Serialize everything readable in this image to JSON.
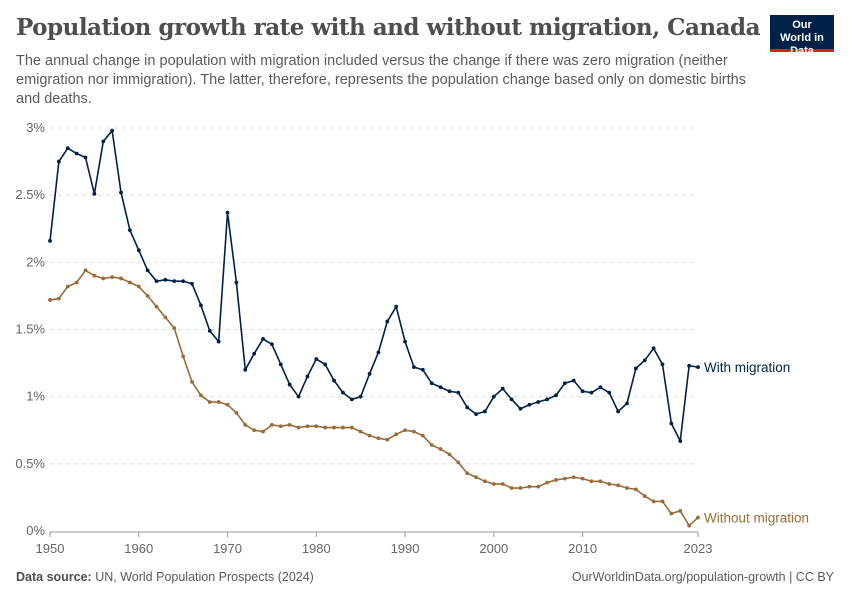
{
  "header": {
    "title": "Population growth rate with and without migration, Canada",
    "subtitle": "The annual change in population with migration included versus the change if there was zero migration (neither emigration nor immigration). The latter, therefore, represents the population change based only on domestic births and deaths.",
    "logo": "Our World in Data"
  },
  "footer": {
    "source_label": "Data source:",
    "source": "UN, World Population Prospects (2024)",
    "url": "OurWorldinData.org/population-growth | CC BY"
  },
  "chart_data": {
    "type": "line",
    "title": "Population growth rate with and without migration, Canada",
    "ylim": [
      0,
      3
    ],
    "xlim": [
      1950,
      2023
    ],
    "yticks": [
      0,
      0.5,
      1,
      1.5,
      2,
      2.5,
      3
    ],
    "ytick_labels": [
      "0%",
      "0.5%",
      "1%",
      "1.5%",
      "2%",
      "2.5%",
      "3%"
    ],
    "xticks": [
      1950,
      1960,
      1970,
      1980,
      1990,
      2000,
      2010,
      2023
    ],
    "xtick_labels": [
      "1950",
      "1960",
      "1970",
      "1980",
      "1990",
      "2000",
      "2010",
      "2023"
    ],
    "grid": "horizontal dashed",
    "legend": "inline labels at line ends (right)",
    "x_start": 1950,
    "series": [
      {
        "name": "With migration",
        "color": "#002147",
        "values": [
          2.16,
          2.75,
          2.85,
          2.81,
          2.78,
          2.51,
          2.9,
          2.98,
          2.52,
          2.24,
          2.09,
          1.94,
          1.86,
          1.87,
          1.86,
          1.86,
          1.84,
          1.68,
          1.49,
          1.41,
          2.37,
          1.85,
          1.2,
          1.32,
          1.43,
          1.39,
          1.24,
          1.09,
          1.0,
          1.15,
          1.28,
          1.24,
          1.12,
          1.03,
          0.98,
          1.0,
          1.17,
          1.33,
          1.56,
          1.67,
          1.41,
          1.22,
          1.2,
          1.1,
          1.07,
          1.04,
          1.03,
          0.92,
          0.87,
          0.89,
          1.0,
          1.06,
          0.98,
          0.91,
          0.94,
          0.96,
          0.98,
          1.01,
          1.1,
          1.12,
          1.04,
          1.03,
          1.07,
          1.03,
          0.89,
          0.95,
          1.21,
          1.27,
          1.36,
          1.24,
          0.8,
          0.67,
          1.23,
          1.22
        ]
      },
      {
        "name": "Without migration",
        "color": "#996d39",
        "values": [
          1.72,
          1.73,
          1.82,
          1.85,
          1.94,
          1.9,
          1.88,
          1.89,
          1.88,
          1.85,
          1.82,
          1.75,
          1.67,
          1.59,
          1.51,
          1.3,
          1.11,
          1.01,
          0.96,
          0.96,
          0.94,
          0.88,
          0.79,
          0.75,
          0.74,
          0.79,
          0.78,
          0.79,
          0.77,
          0.78,
          0.78,
          0.77,
          0.77,
          0.77,
          0.77,
          0.74,
          0.71,
          0.69,
          0.68,
          0.72,
          0.75,
          0.74,
          0.71,
          0.64,
          0.61,
          0.57,
          0.51,
          0.43,
          0.4,
          0.37,
          0.35,
          0.35,
          0.32,
          0.32,
          0.33,
          0.33,
          0.36,
          0.38,
          0.39,
          0.4,
          0.39,
          0.37,
          0.37,
          0.35,
          0.34,
          0.32,
          0.31,
          0.26,
          0.22,
          0.22,
          0.13,
          0.15,
          0.04,
          0.1
        ]
      }
    ]
  }
}
